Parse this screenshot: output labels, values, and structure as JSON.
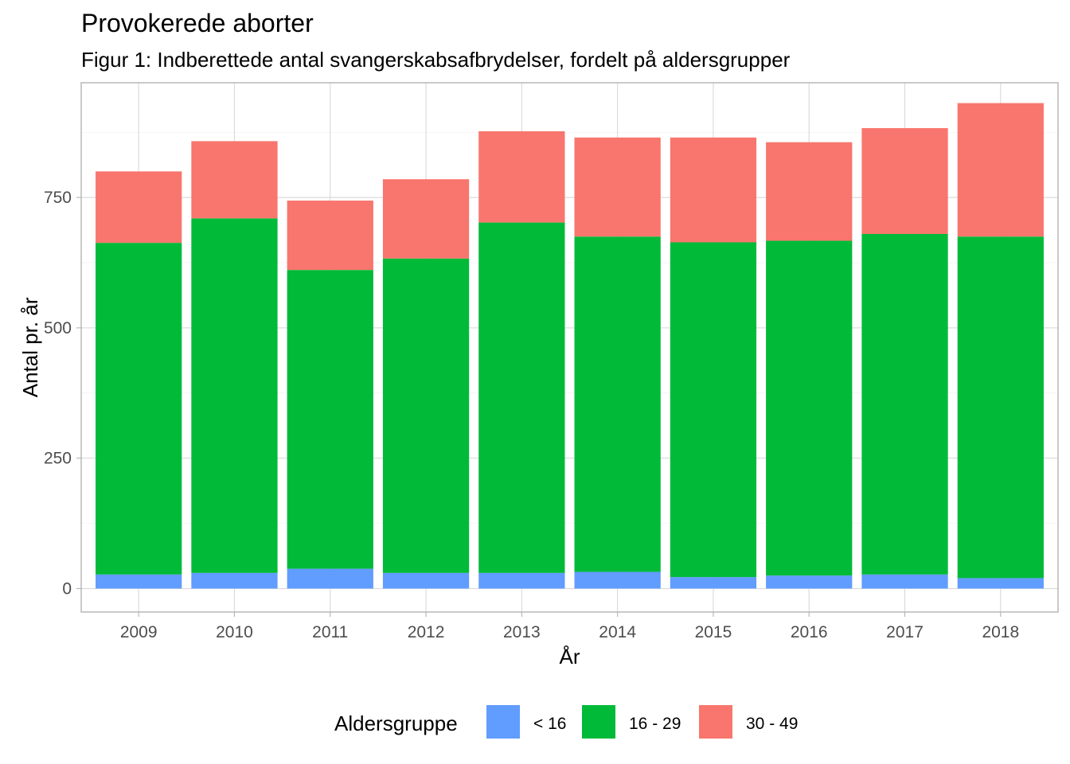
{
  "chart_data": {
    "type": "bar",
    "stacked": true,
    "title": "Provokerede aborter",
    "subtitle": "Figur 1: Indberettede antal svangerskabsafbrydelser, fordelt på aldersgrupper",
    "xlabel": "År",
    "ylabel": "Antal pr. år",
    "categories": [
      "2009",
      "2010",
      "2011",
      "2012",
      "2013",
      "2014",
      "2015",
      "2016",
      "2017",
      "2018"
    ],
    "series": [
      {
        "name": "< 16",
        "color": "#619CFF",
        "values": [
          27,
          30,
          38,
          30,
          30,
          32,
          22,
          25,
          27,
          20
        ]
      },
      {
        "name": "16 - 29",
        "color": "#00BA38",
        "values": [
          636,
          680,
          573,
          603,
          672,
          643,
          642,
          642,
          653,
          655
        ]
      },
      {
        "name": "30 - 49",
        "color": "#F8766D",
        "values": [
          137,
          148,
          133,
          152,
          175,
          190,
          201,
          189,
          203,
          256
        ]
      }
    ],
    "yticks": [
      0,
      250,
      500,
      750
    ],
    "ylim": [
      -45,
      970
    ],
    "grid": true,
    "legend": {
      "title": "Aldersgruppe",
      "position": "bottom"
    }
  }
}
